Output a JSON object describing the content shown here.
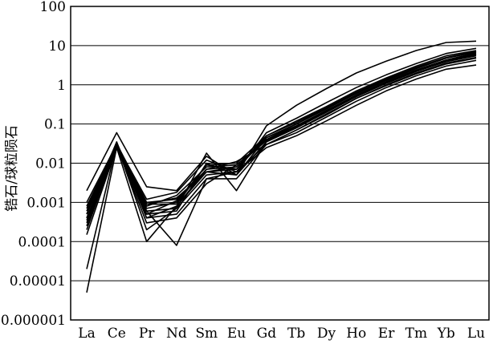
{
  "chart_data": {
    "type": "line",
    "title": "",
    "xlabel": "",
    "ylabel": "锆石/球粒陨石",
    "y_scale": "log",
    "ylim": [
      1e-06,
      100
    ],
    "grid": "horizontal",
    "legend": "none",
    "line_color": "#000000",
    "categories": [
      "La",
      "Ce",
      "Pr",
      "Nd",
      "Sm",
      "Eu",
      "Gd",
      "Tb",
      "Dy",
      "Ho",
      "Er",
      "Tm",
      "Yb",
      "Lu"
    ],
    "y_ticks": [
      "0.000001",
      "0.00001",
      "0.0001",
      "0.001",
      "0.01",
      "0.1",
      "1",
      "10",
      "100"
    ],
    "y_tick_values": [
      1e-06,
      1e-05,
      0.0001,
      0.001,
      0.01,
      0.1,
      1,
      10,
      100
    ],
    "series": [
      {
        "values": [
          0.002,
          0.06,
          0.0025,
          0.002,
          0.015,
          0.005,
          0.09,
          0.3,
          0.8,
          2.0,
          4.0,
          7.5,
          12,
          13
        ]
      },
      {
        "values": [
          0.001,
          0.03,
          0.0009,
          0.0009,
          0.009,
          0.01,
          0.05,
          0.12,
          0.28,
          0.7,
          1.5,
          3.0,
          5.5,
          7.5
        ]
      },
      {
        "values": [
          0.0005,
          0.035,
          0.0004,
          0.0008,
          0.006,
          0.005,
          0.045,
          0.1,
          0.25,
          0.6,
          1.3,
          2.6,
          4.8,
          7.0
        ]
      },
      {
        "values": [
          0.0003,
          0.03,
          0.0002,
          0.0007,
          0.018,
          0.002,
          0.035,
          0.08,
          0.2,
          0.5,
          1.1,
          2.2,
          4.0,
          6.0
        ]
      },
      {
        "values": [
          0.00015,
          0.025,
          0.0001,
          0.0008,
          0.007,
          0.008,
          0.04,
          0.09,
          0.22,
          0.55,
          1.2,
          2.4,
          4.3,
          6.5
        ]
      },
      {
        "values": [
          5e-06,
          0.025,
          0.0006,
          8e-05,
          0.004,
          0.006,
          0.03,
          0.07,
          0.17,
          0.45,
          1.0,
          2.0,
          3.6,
          5.0
        ]
      },
      {
        "values": [
          2e-05,
          0.03,
          0.0005,
          0.0006,
          0.01,
          0.005,
          0.035,
          0.08,
          0.2,
          0.5,
          1.1,
          2.2,
          4.0,
          5.8
        ]
      },
      {
        "values": [
          0.0004,
          0.03,
          0.0008,
          0.0015,
          0.008,
          0.009,
          0.04,
          0.1,
          0.24,
          0.6,
          1.3,
          2.6,
          4.8,
          6.8
        ]
      },
      {
        "values": [
          0.0006,
          0.032,
          0.001,
          0.0012,
          0.006,
          0.007,
          0.05,
          0.11,
          0.27,
          0.65,
          1.4,
          2.8,
          5.0,
          7.2
        ]
      },
      {
        "values": [
          0.0002,
          0.028,
          0.0004,
          0.0005,
          0.004,
          0.004,
          0.03,
          0.06,
          0.15,
          0.38,
          0.85,
          1.7,
          3.0,
          4.2
        ]
      },
      {
        "values": [
          0.0008,
          0.03,
          0.0012,
          0.0018,
          0.012,
          0.006,
          0.06,
          0.14,
          0.35,
          0.85,
          1.8,
          3.5,
          6.3,
          8.5
        ]
      },
      {
        "values": [
          0.00035,
          0.028,
          0.0005,
          0.0011,
          0.007,
          0.011,
          0.03,
          0.07,
          0.18,
          0.45,
          0.95,
          1.9,
          3.4,
          4.8
        ]
      },
      {
        "values": [
          0.0005,
          0.03,
          0.0006,
          0.0007,
          0.005,
          0.006,
          0.025,
          0.05,
          0.12,
          0.3,
          0.7,
          1.4,
          2.5,
          3.2
        ]
      },
      {
        "values": [
          0.0007,
          0.033,
          0.0007,
          0.001,
          0.009,
          0.007,
          0.045,
          0.1,
          0.26,
          0.62,
          1.35,
          2.7,
          4.9,
          7.0
        ]
      },
      {
        "values": [
          0.00025,
          0.027,
          0.0003,
          0.0004,
          0.003,
          0.009,
          0.04,
          0.09,
          0.22,
          0.53,
          1.15,
          2.3,
          4.2,
          6.2
        ]
      },
      {
        "values": [
          0.0004,
          0.03,
          0.0009,
          0.0013,
          0.006,
          0.008,
          0.038,
          0.085,
          0.21,
          0.5,
          1.1,
          2.2,
          3.9,
          5.5
        ]
      }
    ]
  }
}
